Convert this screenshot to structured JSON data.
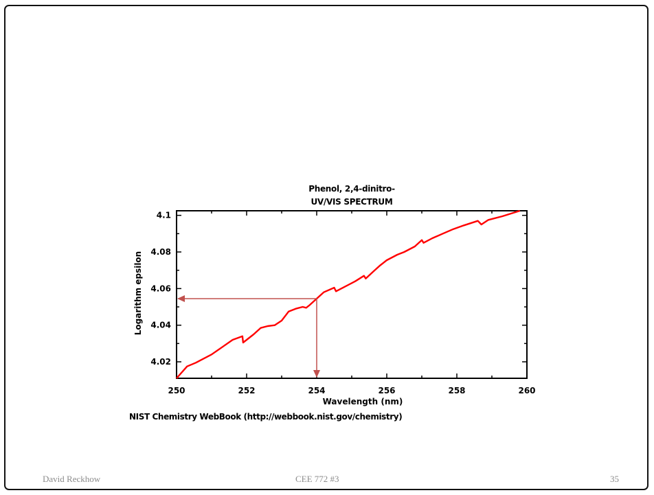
{
  "chart_data": {
    "type": "line",
    "title": "Phenol, 2,4-dinitro-",
    "subtitle": "UV/VIS SPECTRUM",
    "xlabel": "Wavelength (nm)",
    "ylabel": "Logarithm epsilon",
    "xlim": [
      250,
      260
    ],
    "ylim": [
      4.011,
      4.1025
    ],
    "x_ticks": [
      "250",
      "252",
      "254",
      "256",
      "258",
      "260"
    ],
    "y_ticks": [
      "4.02",
      "4.04",
      "4.06",
      "4.08",
      "4.1"
    ],
    "grid": false,
    "series": [
      {
        "color": "#ff0000",
        "x": [
          250.0,
          250.3,
          250.55,
          250.7,
          251.0,
          251.3,
          251.6,
          251.88,
          251.9,
          252.2,
          252.4,
          252.6,
          252.8,
          253.0,
          253.2,
          253.4,
          253.6,
          253.7,
          253.8,
          254.0,
          254.2,
          254.5,
          254.55,
          254.8,
          255.1,
          255.35,
          255.4,
          255.6,
          255.8,
          256.0,
          256.3,
          256.5,
          256.8,
          257.0,
          257.05,
          257.3,
          257.6,
          257.9,
          258.2,
          258.6,
          258.7,
          258.9,
          259.3,
          259.8
        ],
        "y": [
          4.011,
          4.0175,
          4.0195,
          4.021,
          4.024,
          4.028,
          4.032,
          4.034,
          4.0305,
          4.035,
          4.0385,
          4.0395,
          4.04,
          4.0425,
          4.0475,
          4.049,
          4.05,
          4.0495,
          4.051,
          4.0545,
          4.058,
          4.0605,
          4.0585,
          4.061,
          4.064,
          4.067,
          4.0655,
          4.069,
          4.0725,
          4.0755,
          4.0785,
          4.08,
          4.083,
          4.0865,
          4.085,
          4.0875,
          4.09,
          4.0925,
          4.0945,
          4.097,
          4.095,
          4.0975,
          4.0995,
          4.1025
        ]
      }
    ],
    "annotations": [
      {
        "type": "arrow",
        "from": [
          254.0,
          4.0545
        ],
        "to": [
          250.0,
          4.0545
        ],
        "color": "#c0504d"
      },
      {
        "type": "arrow",
        "from": [
          254.0,
          4.0545
        ],
        "to": [
          254.0,
          4.011
        ],
        "color": "#c0504d"
      }
    ]
  },
  "credit": "NIST Chemistry WebBook (http://webbook.nist.gov/chemistry)",
  "footer": {
    "left": "David Reckhow",
    "center": "CEE 772  #3",
    "right": "35"
  }
}
